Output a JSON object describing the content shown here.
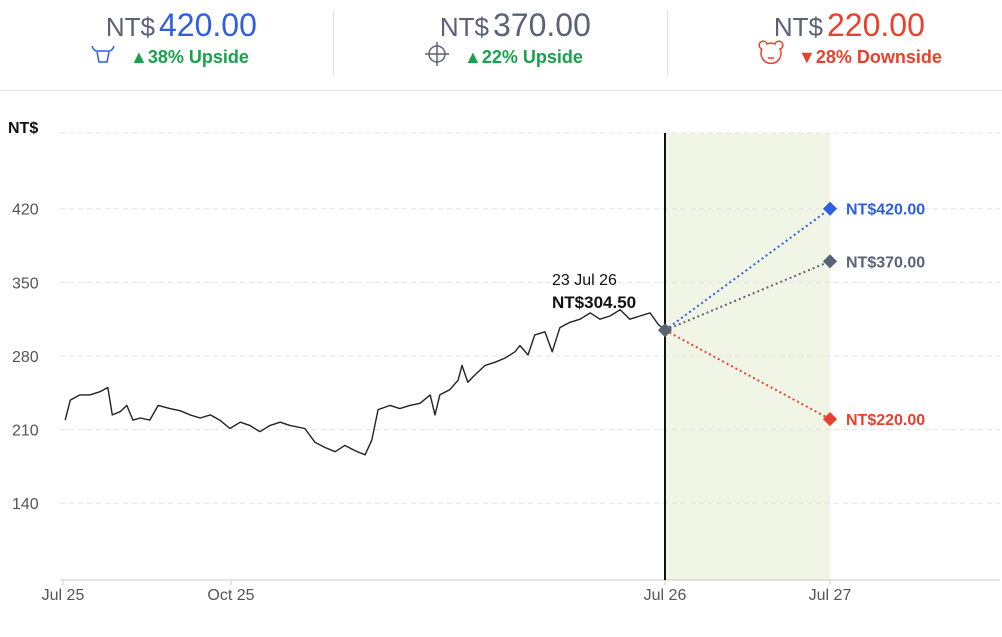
{
  "chart_data": {
    "type": "line",
    "y_axis_label": "NT$",
    "x": [
      0.04,
      0.13,
      0.3,
      0.48,
      0.66,
      0.8,
      0.88,
      1.02,
      1.14,
      1.25,
      1.38,
      1.55,
      1.7,
      1.91,
      2.09,
      2.27,
      2.45,
      2.63,
      2.8,
      2.98,
      3.19,
      3.39,
      3.6,
      3.81,
      4.02,
      4.22,
      4.53,
      4.74,
      4.95,
      5.16,
      5.36,
      5.57,
      5.78,
      5.92,
      6.05,
      6.3,
      6.5,
      6.71,
      6.92,
      7.13,
      7.23,
      7.33,
      7.54,
      7.71,
      7.79,
      7.91,
      8.06,
      8.27,
      8.47,
      8.68,
      8.89,
      8.99,
      9.16,
      9.3,
      9.51,
      9.66,
      9.82,
      10.03,
      10.24,
      10.45,
      10.65,
      10.86,
      11.07,
      11.27,
      11.48,
      11.69,
      11.86,
      12.0
    ],
    "values": [
      219,
      238,
      243,
      243,
      246,
      250,
      224,
      227,
      233,
      219,
      221,
      219,
      233,
      230,
      228,
      224,
      221,
      224,
      219,
      211,
      217,
      214,
      208,
      214,
      217,
      214,
      211,
      198,
      193,
      189,
      195,
      190,
      186,
      200,
      229,
      233,
      230,
      233,
      235,
      243,
      224,
      243,
      248,
      257,
      271,
      255,
      262,
      271,
      274,
      278,
      284,
      290,
      281,
      300,
      303,
      284,
      307,
      312,
      315,
      321,
      315,
      318,
      324,
      315,
      318,
      321,
      310,
      304.5
    ],
    "color": "#222222",
    "xlim": [
      0,
      36
    ],
    "xticks": [
      {
        "value": 0,
        "label": "Jul 25"
      },
      {
        "value": 3,
        "label": "Oct 25"
      },
      {
        "value": 12,
        "label": "Jul 26"
      },
      {
        "value": 24,
        "label": "Jul 27"
      }
    ],
    "ylim": [
      67,
      492
    ],
    "yticks": [
      140,
      210,
      280,
      350,
      420
    ],
    "grid": true,
    "forecast_band": [
      12,
      24
    ],
    "forecast_color": "#f1f5e6",
    "current": {
      "date_label": "23 Jul 26",
      "price_label": "NT$304.50",
      "x": 12,
      "value": 304.5,
      "color": "#5a6275"
    },
    "target_x": 24,
    "targets": [
      {
        "currency": "NT$",
        "price": "420.00",
        "change": "▲38% Upside",
        "label": "NT$420.00",
        "value": 420,
        "color": "#2f5fe0",
        "change_color": "#17a34a"
      },
      {
        "currency": "NT$",
        "price": "370.00",
        "change": "▲22% Upside",
        "label": "NT$370.00",
        "value": 370,
        "color": "#5a6275",
        "change_color": "#17a34a"
      },
      {
        "currency": "NT$",
        "price": "220.00",
        "change": "▼28% Downside",
        "label": "NT$220.00",
        "value": 220,
        "color": "#e8412c",
        "change_color": "#e8412c"
      }
    ]
  }
}
